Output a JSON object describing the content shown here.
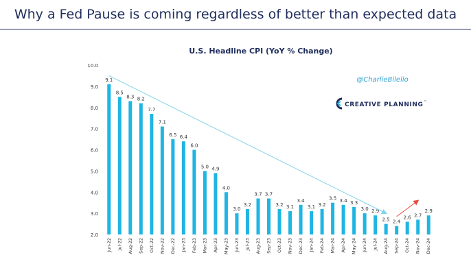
{
  "slide": {
    "title": "Why a Fed Pause is coming regardless of better than expected data"
  },
  "branding": {
    "handle": "@CharlieBilello",
    "company": "CREATIVE PLANNING",
    "tm": "™",
    "logo_icon": "creative-planning-c-icon",
    "handle_color": "#2fa3d4",
    "company_color": "#1f2d5c"
  },
  "colors": {
    "bar": "#1fb5e3",
    "trend_down": "#7fd4ee",
    "trend_up": "#e8493c",
    "axis_text": "#333333",
    "title_text": "#1f2d5c"
  },
  "chart_data": {
    "type": "bar",
    "title": "U.S. Headline CPI (YoY % Change)",
    "xlabel": "",
    "ylabel": "",
    "ylim": [
      2.0,
      10.0
    ],
    "yticks": [
      "2.0",
      "3.0",
      "4.0",
      "5.0",
      "6.0",
      "7.0",
      "8.0",
      "9.0",
      "10.0"
    ],
    "grid": false,
    "legend": "none",
    "categories": [
      "Jun-22",
      "Jul-22",
      "Aug-22",
      "Sep-22",
      "Oct-22",
      "Nov-22",
      "Dec-22",
      "Jan-23",
      "Feb-23",
      "Mar-23",
      "Apr-23",
      "May-23",
      "Jun-23",
      "Jul-23",
      "Aug-23",
      "Sep-23",
      "Oct-23",
      "Nov-23",
      "Dec-23",
      "Jan-24",
      "Feb-24",
      "Mar-24",
      "Apr-24",
      "May-24",
      "Jun-24",
      "Jul-24",
      "Aug-24",
      "Sep-24",
      "Oct-24",
      "Nov-24",
      "Dec-24"
    ],
    "values": [
      9.1,
      8.5,
      8.3,
      8.2,
      7.7,
      7.1,
      6.5,
      6.4,
      6.0,
      5.0,
      4.9,
      4.0,
      3.0,
      3.2,
      3.7,
      3.7,
      3.2,
      3.1,
      3.4,
      3.1,
      3.2,
      3.5,
      3.4,
      3.3,
      3.0,
      2.9,
      2.5,
      2.4,
      2.6,
      2.7,
      2.9
    ],
    "labels": [
      "9.1",
      "8.5",
      "8.3",
      "8.2",
      "7.7",
      "7.1",
      "6.5",
      "6.4",
      "6.0",
      "5.0",
      "4.9",
      "4.0",
      "3.0",
      "3.2",
      "3.7",
      "3.7",
      "3.2",
      "3.1",
      "3.4",
      "3.1",
      "3.2",
      "3.5",
      "3.4",
      "3.3",
      "3.0",
      "2.9",
      "2.5",
      "2.4",
      "2.6",
      "2.7",
      "2.9"
    ],
    "annotations": [
      {
        "name": "downtrend-arrow",
        "from": {
          "x": "Jun-22",
          "y": 9.5
        },
        "to": {
          "x": "Aug-24",
          "y": 3.0
        }
      },
      {
        "name": "uptrend-arrow",
        "from": {
          "x": "Sep-24",
          "y": 2.85
        },
        "to": {
          "x": "Nov-24",
          "y": 3.6
        }
      }
    ]
  }
}
